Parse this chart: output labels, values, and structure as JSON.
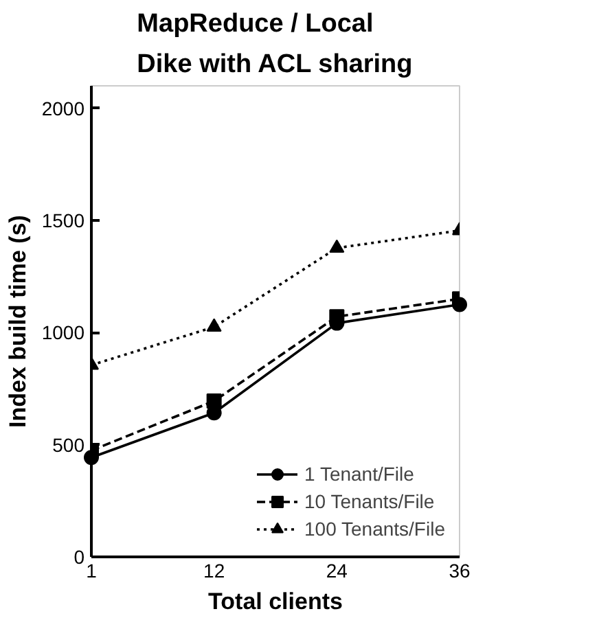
{
  "chart_data": {
    "type": "line",
    "title": "MapReduce / Local\nDike with ACL sharing",
    "xlabel": "Total clients",
    "ylabel": "Index build time (s)",
    "categories": [
      "1",
      "12",
      "24",
      "36"
    ],
    "ylim": [
      0,
      2100
    ],
    "yticks": [
      0,
      500,
      1000,
      1500,
      2000
    ],
    "grid": false,
    "legend": "bottom right",
    "series": [
      {
        "name": "1 Tenant/File",
        "color": "#000000",
        "values": [
          443,
          642,
          1042,
          1125
        ],
        "marker": "circle",
        "line_style": "solid"
      },
      {
        "name": "10 Tenants/File",
        "color": "#000000",
        "values": [
          474,
          695,
          1071,
          1150
        ],
        "marker": "square",
        "line_style": "dashed"
      },
      {
        "name": "100 Tenants/File",
        "color": "#000000",
        "values": [
          855,
          1025,
          1377,
          1455
        ],
        "marker": "triangle",
        "line_style": "dotted"
      }
    ]
  }
}
